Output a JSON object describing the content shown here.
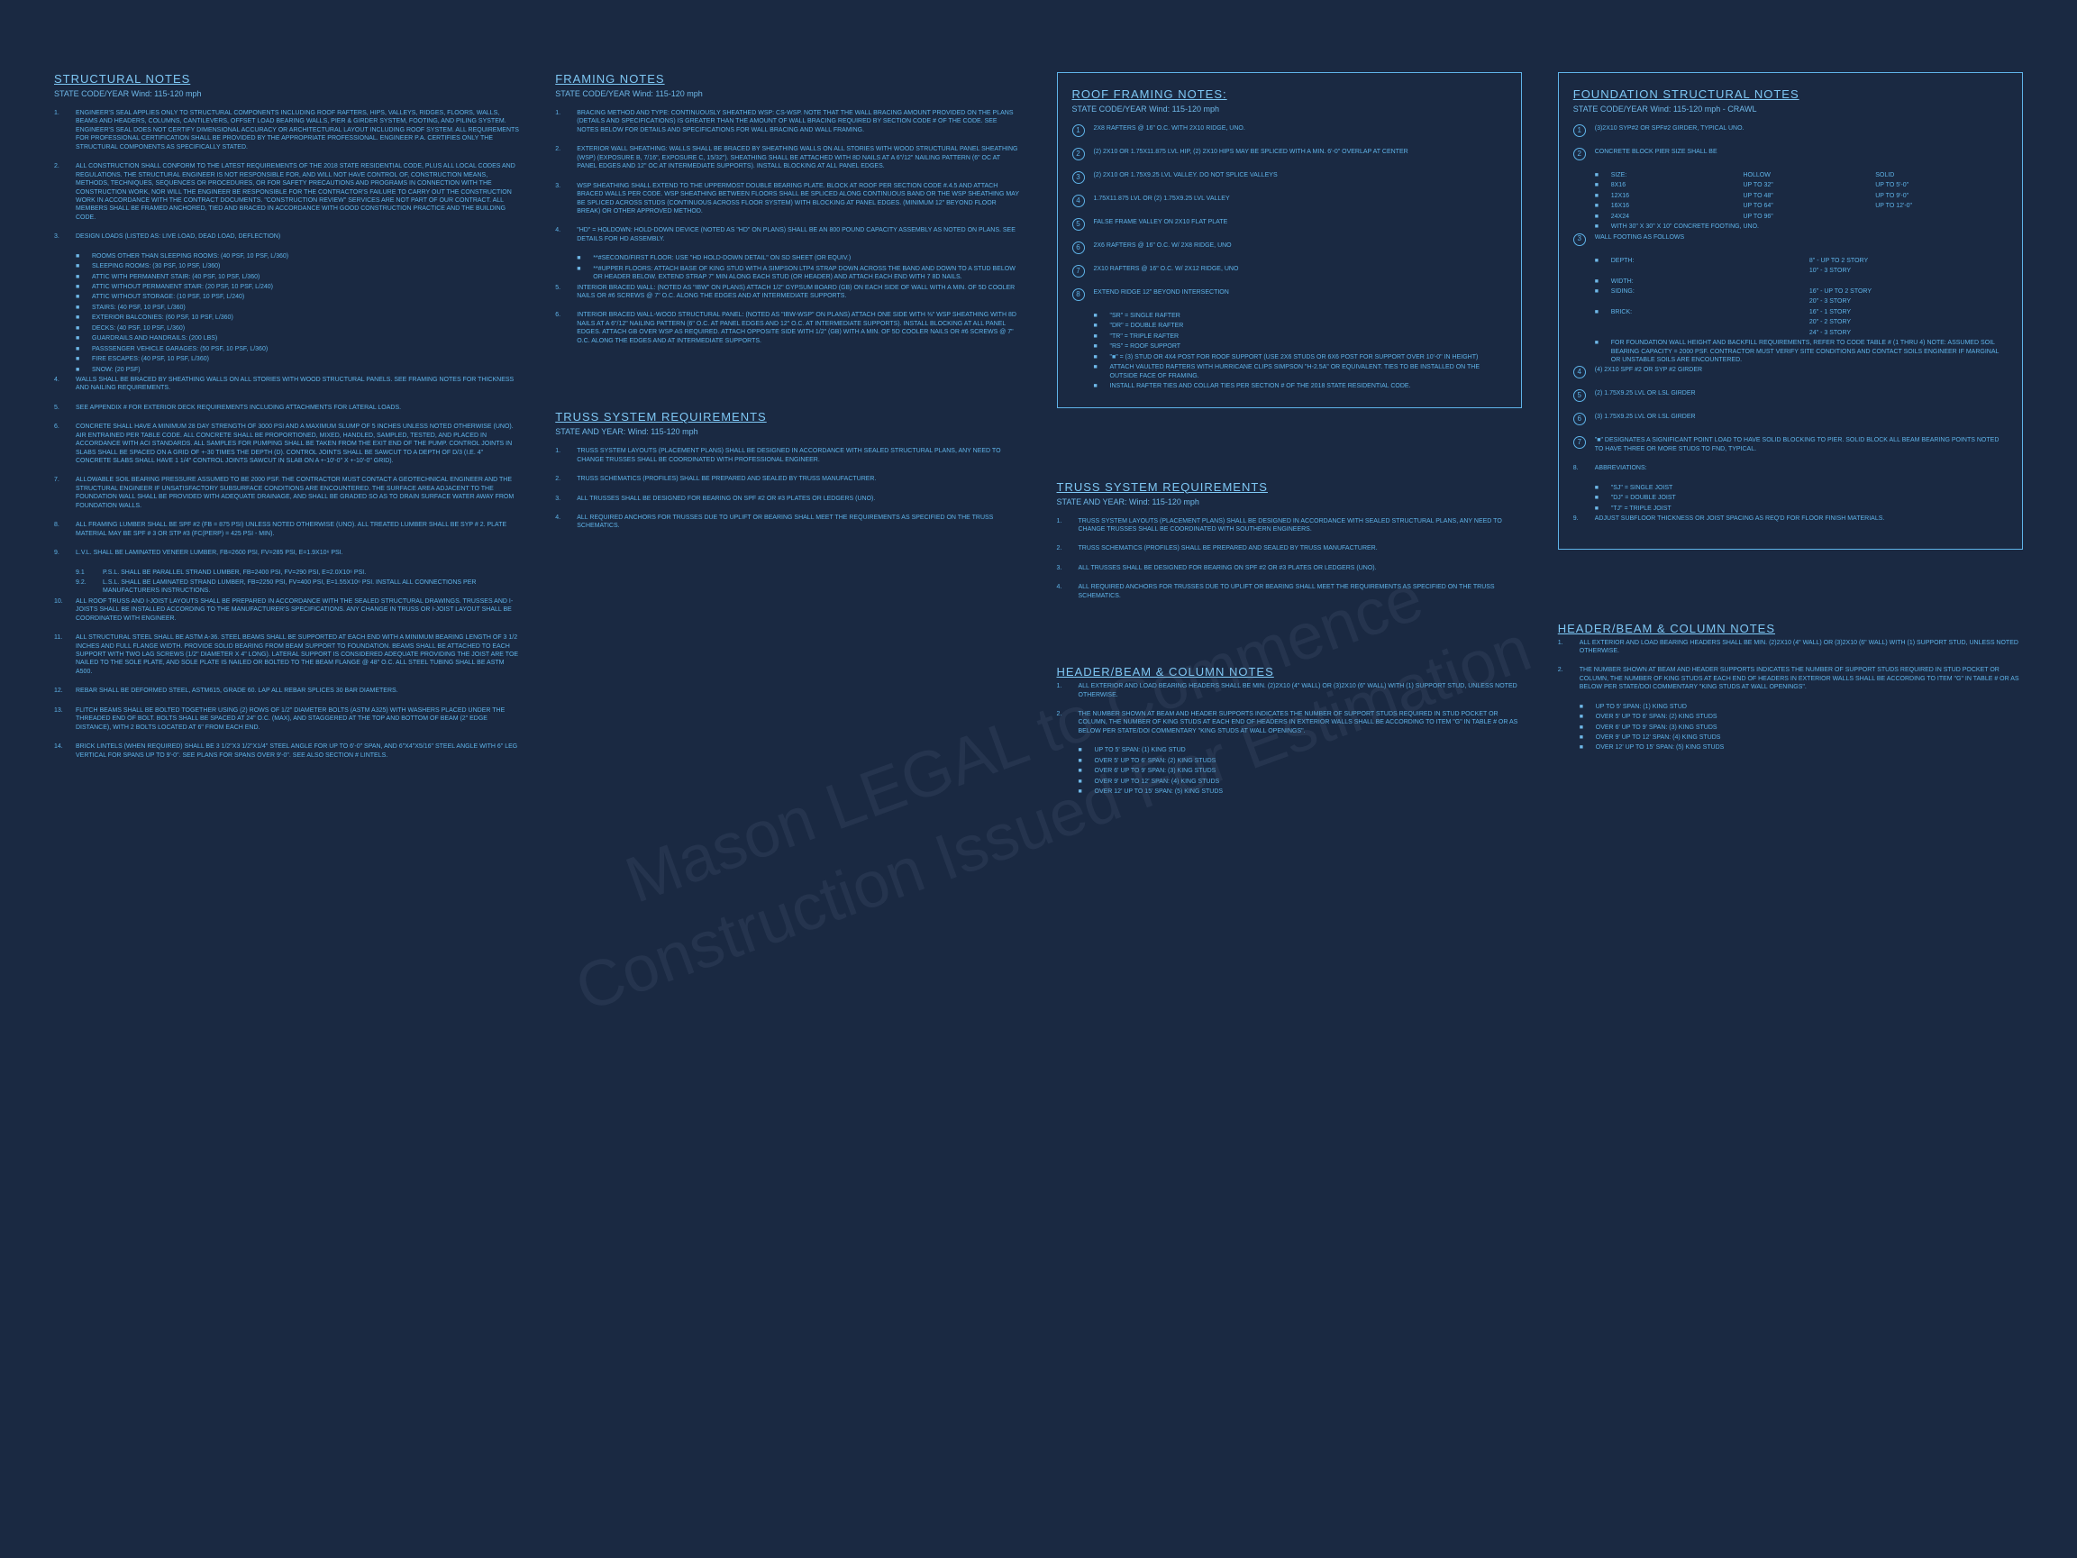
{
  "watermark": "Mason LEGAL to Commence Construction\nIssued For Estimation",
  "structural": {
    "title": "STRUCTURAL NOTES",
    "sub": "STATE CODE/YEAR Wind: 115-120 mph",
    "items": [
      {
        "n": "1.",
        "t": "Engineer's seal applies only to structural components including roof rafters, hips, valleys, ridges, floors, walls, beams and headers, columns, cantilevers, offset load bearing walls, pier & girder system, footing, and piling system. Engineer's seal does not certify dimensional accuracy or architectural layout including roof system. All requirements for professional certification shall be provided by the appropriate professional. Engineer P.A. certifies only the structural components as specifically stated."
      },
      {
        "n": "2.",
        "t": "All construction shall conform to the latest requirements of the 2018 state residential code, plus all local codes and regulations. The structural engineer is not responsible for, and will not have control of, construction means, methods, techniques, sequences or procedures, or for safety precautions and programs in connection with the construction work, nor will the engineer be responsible for the contractor's failure to carry out the construction work in accordance with the contract documents. \"Construction review\" services are not part of our contract. All members shall be framed anchored, tied and braced in accordance with good construction practice and the building code."
      },
      {
        "n": "3.",
        "t": "Design loads (listed as: live load, dead load, deflection)"
      },
      {
        "n": "4.",
        "t": "Walls shall be braced by sheathing walls on all stories with wood structural panels. See framing notes for thickness and nailing requirements."
      },
      {
        "n": "5.",
        "t": "See appendix # for exterior deck requirements including attachments for lateral loads."
      },
      {
        "n": "6.",
        "t": "Concrete shall have a minimum 28 day strength of 3000 psi and a maximum slump of 5 inches unless noted otherwise (UNO). Air entrained per table code. All concrete shall be proportioned, mixed, handled, sampled, tested, and placed in accordance with ACI standards. All samples for pumping shall be taken from the exit end of the pump. Control joints in slabs shall be spaced on a grid of +-30 times the depth (D). Control joints shall be sawcut to a depth of D/3 (I.E. 4\" concrete slabs shall have 1 1/4\" control joints sawcut in slab on a +-10'-0\" x +-10'-0\" grid)."
      },
      {
        "n": "7.",
        "t": "Allowable soil bearing pressure assumed to be 2000 psf. The contractor must contact a geotechnical engineer and the structural engineer if unsatisfactory subsurface conditions are encountered. The surface area adjacent to the foundation wall shall be provided with adequate drainage, and shall be graded so as to drain surface water away from foundation walls."
      },
      {
        "n": "8.",
        "t": "All framing lumber shall be SPF #2 (Fb = 875 psi) unless noted otherwise (UNO). All treated lumber shall be SYP # 2. Plate material may be SPF # 3 or STP #3 (Fc(perp) = 425 psi - min)."
      },
      {
        "n": "9.",
        "t": "L.V.L. shall be laminated veneer lumber, Fb=2600 psi, Fv=285 psi, E=1.9x10⁶ psi."
      },
      {
        "n": "10.",
        "t": "All roof truss and I-joist layouts shall be prepared in accordance with the sealed structural drawings. Trusses and I-joists shall be installed according to the manufacturer's specifications. Any change in truss or I-joist layout shall be coordinated with engineer."
      },
      {
        "n": "11.",
        "t": "All structural steel shall be ASTM A-36. Steel beams shall be supported at each end with a minimum bearing length of 3 1/2 inches and full flange width. Provide solid bearing from beam support to foundation. Beams shall be attached to each support with two lag screws (1/2\" diameter x 4\" long). Lateral support is considered adequate providing the joist are toe nailed to the sole plate, and sole plate is nailed or bolted to the beam flange @ 48\" o.c. All steel tubing shall be ASTM A500."
      },
      {
        "n": "12.",
        "t": "Rebar shall be deformed steel, ASTM615, grade 60. Lap all rebar splices 30 bar diameters."
      },
      {
        "n": "13.",
        "t": "Flitch beams shall be bolted together using (2) rows of 1/2\" diameter bolts (ASTM A325) with washers placed under the threaded end of bolt. Bolts shall be spaced at 24\" o.c. (max), and staggered at the top and bottom of beam (2\" edge distance), with 2 bolts located at 6\" from each end."
      },
      {
        "n": "14.",
        "t": "Brick lintels (when required) shall be 3 1/2\"x3 1/2\"x1/4\" steel angle for up to 6'-0\" span, and 6\"x4\"x5/16\" steel angle with 6\" leg vertical for spans up to 9'-0\". See plans for spans over 9'-0\". See also section # lintels."
      }
    ],
    "designLoads": [
      "Rooms other than sleeping rooms: (40 psf, 10 psf, L/360)",
      "Sleeping rooms: (30 psf, 10 psf, L/360)",
      "Attic with permanent stair: (40 psf, 10 psf, L/360)",
      "Attic without permanent stair: (20 psf, 10 psf, L/240)",
      "Attic without storage: (10 psf, 10 psf, L/240)",
      "Stairs: (40 psf, 10 psf, L/360)",
      "Exterior balconies: (60 psf, 10 psf, L/360)",
      "Decks: (40 psf, 10 psf, L/360)",
      "Guardrails and handrails: (200 lbs)",
      "Passsenger vehicle garages: (50 psf, 10 psf, L/360)",
      "Fire escapes: (40 psf, 10 psf, L/360)",
      "Snow: (20 psf)"
    ],
    "subs9": [
      {
        "n": "9.1",
        "t": "P.S.L. shall be parallel strand lumber, Fb=2400 psi, Fv=290 psi, E=2.0x10⁶ psi."
      },
      {
        "n": "9.2.",
        "t": "L.S.L. shall be laminated strand lumber, Fb=2250 psi, Fv=400 psi, E=1.55x10⁶ psi. Install all connections per manufacturers instructions."
      }
    ]
  },
  "framing": {
    "title": "FRAMING NOTES",
    "sub": "STATE CODE/YEAR Wind: 115-120 mph",
    "items": [
      {
        "n": "1.",
        "t": "Bracing method and type: continuously sheathed WSP: CS-WSP. Note that the wall bracing amount provided on the plans (details and specifications) is greater than the amount of wall bracing required by section code # of the code. See notes below for details and specifications for wall bracing and wall framing."
      },
      {
        "n": "2.",
        "t": "Exterior wall sheathing: walls shall be braced by sheathing walls on all stories with wood structural panel sheathing (WSP) (exposure B, 7/16\", exposure C, 15/32\"). Sheathing shall be attached with 8d nails at a 6\"/12\" nailing pattern (6\" oc at panel edges and 12\" oc at intermediate supports). Install blocking at all panel edges."
      },
      {
        "n": "3.",
        "t": "WSP sheathing shall extend to the uppermost double bearing plate. Block at roof per section code #.4.5 and attach braced walls per code. WSP sheathing between floors shall be spliced along continuous band or the WSP sheathing may be spliced across studs (continuous across floor system) with blocking at panel edges. (Minimum 12\" beyond floor break) or other approved method."
      },
      {
        "n": "4.",
        "t": "\"HD\" = holdown: hold-down device (noted as \"HD\" on plans) shall be an 800 pound capacity assembly as noted on plans. See details for HD assembly."
      },
      {
        "n": "5.",
        "t": "Interior braced wall: (noted as \"IBW\" on plans) attach 1/2\" gypsum board (GB) on each side of wall with a min. of 5d cooler nails or #6 screws @ 7\" o.c. along the edges and at intermediate supports."
      },
      {
        "n": "6.",
        "t": "Interior braced wall-wood structural panel: (noted as \"IBW-WSP\" on plans) attach one side with ⅜\" WSP sheathing with 8d nails at a 6\"/12\" nailing pattern (6\" o.c. at panel edges and 12\" o.c. at intermediate supports). Install blocking at all panel edges. Attach GB over WSP as required. Attach opposite side with 1/2\" (GB) with a min. of 5d cooler nails or #6 screws @ 7\" o.c. along the edges and at intermediate supports."
      }
    ],
    "bullets4": [
      "**#second/first floor: use \"HD hold-down detail\" on SD sheet (or equiv.)",
      "**#upper floors: attach base of king stud with a Simpson LTP4 strap down across the band and down to a stud below or header below. Extend strap 7\" min along each stud (or header) and attach each end with 7 8d nails."
    ]
  },
  "trussReq": {
    "title": "TRUSS SYSTEM REQUIREMENTS",
    "sub": "STATE AND YEAR: Wind: 115-120 mph",
    "items": [
      {
        "n": "1.",
        "t": "Truss system layouts (placement plans) shall be designed in accordance with sealed structural plans, any need to change trusses shall be coordinated with professional engineer."
      },
      {
        "n": "2.",
        "t": "Truss schematics (profiles) shall be prepared and sealed by truss manufacturer."
      },
      {
        "n": "3.",
        "t": "All trusses shall be designed for bearing on SPF #2 or #3 plates or ledgers (UNO)."
      },
      {
        "n": "4.",
        "t": "All required anchors for trusses due to uplift or bearing shall meet the requirements as specified on the truss schematics."
      }
    ]
  },
  "roofFraming": {
    "title": "ROOF FRAMING NOTES:",
    "sub": "STATE CODE/YEAR Wind: 115-120 mph",
    "items": [
      {
        "n": "1",
        "t": "2x8 rafters @ 16\" o.c. with 2x10 ridge, UNO."
      },
      {
        "n": "2",
        "t": "(2) 2x10 or 1.75x11.875 LVL hip, (2) 2x10 hips may be spliced with a min. 6'-0\" overlap at center"
      },
      {
        "n": "3",
        "t": "(2) 2x10 or 1.75x9.25 LVL valley. Do not splice valleys"
      },
      {
        "n": "4",
        "t": "1.75x11.875 LVL or (2) 1.75x9.25 LVL valley"
      },
      {
        "n": "5",
        "t": "False frame valley on 2x10 flat plate"
      },
      {
        "n": "6",
        "t": "2x6 rafters @ 16\" o.c. w/ 2x8 ridge, UNO"
      },
      {
        "n": "7",
        "t": "2x10 rafters @ 16\" o.c. w/ 2x12 ridge, UNO"
      },
      {
        "n": "8",
        "t": "Extend ridge 12\" beyond intersection"
      }
    ],
    "legend": [
      "\"SR\" = single rafter",
      "\"DR\" = double rafter",
      "\"TR\" = triple rafter",
      "\"RS\" = roof support",
      "\"■\" = (3) stud or 4x4 post for roof support (use 2x6 studs or 6x6 post for support over 10'-0\" in height)",
      "Attach vaulted rafters with hurricane clips Simpson \"H-2.5A\" or equivalent. Ties to be installed on the outside face of framing.",
      "Install rafter ties and collar ties per section # of the 2018 state residential code."
    ]
  },
  "trussReq2": {
    "title": "TRUSS SYSTEM REQUIREMENTS",
    "sub": "STATE AND YEAR: Wind: 115-120 mph",
    "items": [
      {
        "n": "1.",
        "t": "Truss system layouts (placement plans) shall be designed in accordance with sealed structural plans, any need to change trusses shall be coordinated with southern engineers."
      },
      {
        "n": "2.",
        "t": "Truss schematics (profiles) shall be prepared and sealed by truss manufacturer."
      },
      {
        "n": "3.",
        "t": "All trusses shall be designed for bearing on SPF #2 or #3 plates or ledgers (UNO)."
      },
      {
        "n": "4.",
        "t": "All required anchors for trusses due to uplift or bearing shall meet the requirements as specified on the truss schematics."
      }
    ]
  },
  "headerBeam": {
    "title": "HEADER/BEAM & COLUMN NOTES",
    "items": [
      {
        "n": "1.",
        "t": "All exterior and load bearing headers shall be min. (2)2x10 (4\" wall) or (3)2x10 (6\" wall) with (1) support stud, unless noted otherwise."
      },
      {
        "n": "2.",
        "t": "The number shown at beam and header supports indicates the number of support studs required in stud pocket or column, the number of king studs at each end of headers in exterior walls shall be according to item \"G\" in table # or as below per state/DOI commentary \"king studs at wall openings\"."
      }
    ],
    "kingStuds": [
      "Up to 5' span: (1) king stud",
      "Over 5' up to 6' span: (2) king studs",
      "Over 6' up to 9' span: (3) king studs",
      "Over 9' up to 12' span: (4) king studs",
      "Over 12' up to 15' span: (5) king studs"
    ]
  },
  "foundation": {
    "title": "FOUNDATION STRUCTURAL NOTES",
    "sub": "STATE CODE/YEAR Wind: 115-120 mph - CRAWL",
    "items": [
      {
        "n": "1",
        "t": "(3)2x10 SYP#2 or SPF#2 girder, typical UNO."
      },
      {
        "n": "2",
        "t": "Concrete block pier size shall be"
      },
      {
        "n": "3",
        "t": "Wall footing as follows"
      },
      {
        "n": "4",
        "t": "(4) 2x10 SPF #2 or SYP #2 girder"
      },
      {
        "n": "5",
        "t": "(2) 1.75x9.25 LVL or LSL girder"
      },
      {
        "n": "6",
        "t": "(3) 1.75x9.25 LVL or LSL girder"
      },
      {
        "n": "7",
        "t": "\"■\" designates a significant point load to have solid blocking to pier. Solid block all beam bearing points noted to have three or more studs to fnd, typical."
      },
      {
        "n": "8.",
        "t": "Abbreviations:"
      },
      {
        "n": "9.",
        "t": "Adjust subfloor thickness or joist spacing as req'd for floor finish materials."
      }
    ],
    "pierTable": [
      {
        "size": "Size:",
        "hollow": "Hollow",
        "solid": "Solid"
      },
      {
        "size": "8x16",
        "hollow": "up to 32\"",
        "solid": "up to 5'-0\""
      },
      {
        "size": "12x16",
        "hollow": "up to 48\"",
        "solid": "up to 9'-0\""
      },
      {
        "size": "16x16",
        "hollow": "up to 64\"",
        "solid": "up to 12'-0\""
      },
      {
        "size": "24x24",
        "hollow": "up to 96\"",
        "solid": ""
      }
    ],
    "pierNote": "with 30\" x 30\" x 10\" concrete footing, UNO.",
    "footingTable": [
      {
        "k": "Depth:",
        "v1": "8\" - up to 2 story",
        "v2": "10\" - 3 story"
      },
      {
        "k": "Width:",
        "v1": "",
        "v2": ""
      },
      {
        "k": "Siding:",
        "v1": "16\" - up to 2 story",
        "v2": "20\" - 3 story"
      },
      {
        "k": "Brick:",
        "v1": "16\" - 1 story",
        "v2": "20\" - 2 story"
      }
    ],
    "footingExtra": "24\" - 3 story",
    "foundNote": "For foundation wall height and backfill requirements, refer to code table # (1 thru 4) Note: Assumed soil bearing capacity = 2000 psf. Contractor must verify site conditions and contact soils engineer if marginal or unstable soils are encountered.",
    "abbrev": [
      "\"SJ\" = single joist",
      "\"DJ\" = double joist",
      "\"TJ\" = triple joist"
    ]
  }
}
